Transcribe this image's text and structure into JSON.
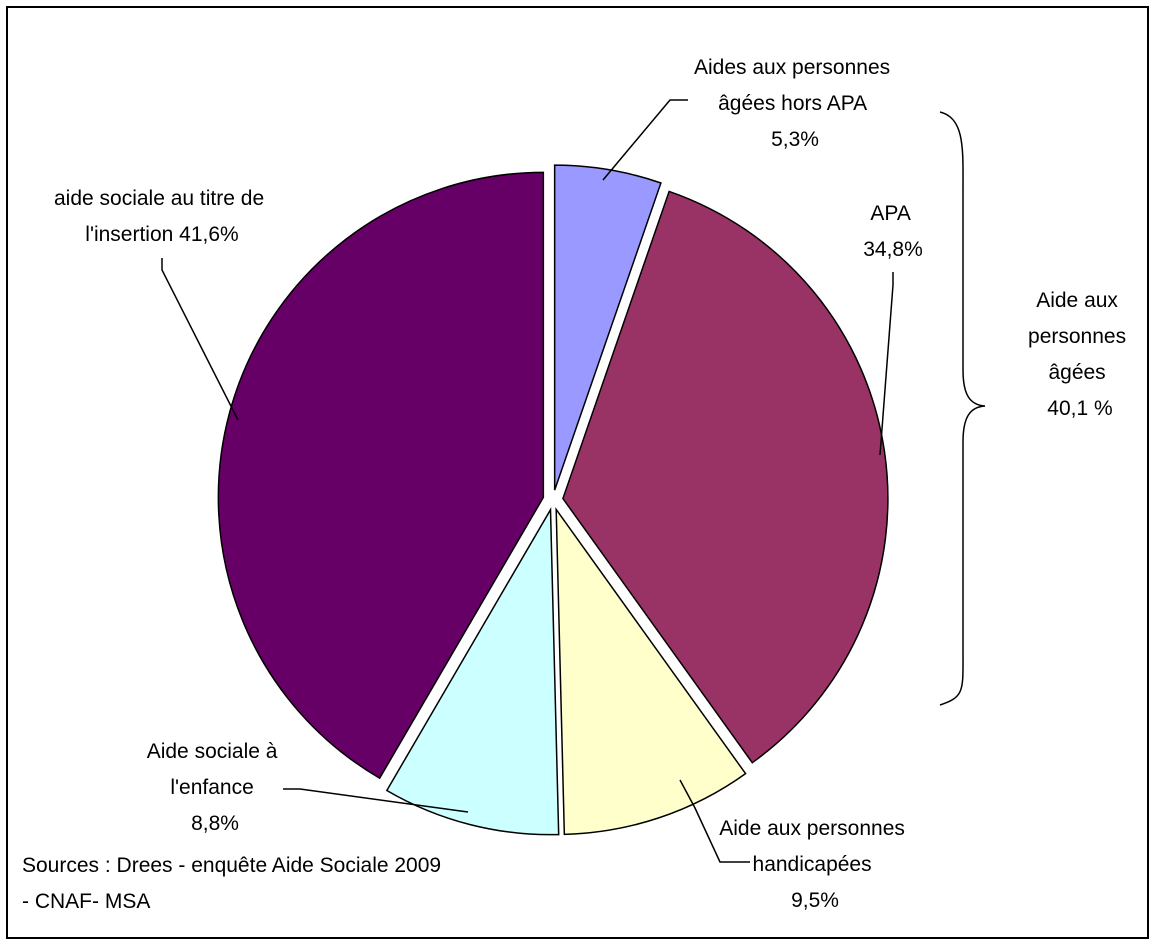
{
  "chart_data": {
    "type": "pie",
    "title": "",
    "slices": [
      {
        "label_lines": [
          "Aides aux personnes",
          "âgées hors APA"
        ],
        "value_label": "5,3%",
        "value": 5.3,
        "color": "#9999FF"
      },
      {
        "label_lines": [
          "APA"
        ],
        "value_label": "34,8%",
        "value": 34.8,
        "color": "#993366"
      },
      {
        "label_lines": [
          "Aide aux personnes",
          "handicapées"
        ],
        "value_label": "9,5%",
        "value": 9.5,
        "color": "#FFFFCC"
      },
      {
        "label_lines": [
          "Aide sociale à",
          "l'enfance"
        ],
        "value_label": "8,8%",
        "value": 8.8,
        "color": "#CCFFFF"
      },
      {
        "label_lines": [
          "aide sociale au titre de",
          "l'insertion 41,6%"
        ],
        "value_label": "",
        "value": 41.6,
        "color": "#660066"
      }
    ],
    "group_annotation": {
      "lines": [
        "Aide aux",
        "personnes",
        "âgées",
        "40,1 %"
      ]
    },
    "source_lines": [
      "Sources : Drees - enquête Aide Sociale 2009",
      "- CNAF- MSA"
    ]
  }
}
